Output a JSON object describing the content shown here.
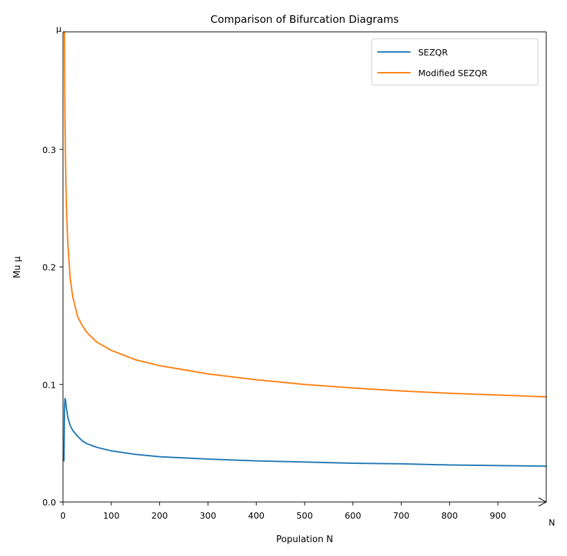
{
  "chart_data": {
    "type": "line",
    "title": "Comparison of Bifurcation Diagrams",
    "xlabel": "Population N",
    "ylabel": "Mu μ",
    "x_arrow_label": "N",
    "y_arrow_label": "μ",
    "xlim": [
      0,
      1000
    ],
    "ylim": [
      0,
      0.4
    ],
    "xticks": [
      0,
      100,
      200,
      300,
      400,
      500,
      600,
      700,
      800,
      900
    ],
    "xtick_labels": [
      "0",
      "100",
      "200",
      "300",
      "400",
      "500",
      "600",
      "700",
      "800",
      "900"
    ],
    "yticks": [
      0,
      0.1,
      0.2,
      0.3
    ],
    "ytick_labels": [
      "0.0",
      "0.1",
      "0.2",
      "0.3"
    ],
    "grid": false,
    "legend_position": "top-right",
    "series": [
      {
        "name": "SEZQR",
        "color": "#1f77b4",
        "x": [
          2,
          3,
          4,
          5,
          7,
          10,
          15,
          20,
          30,
          40,
          50,
          70,
          100,
          150,
          200,
          300,
          400,
          500,
          600,
          700,
          800,
          900,
          1000
        ],
        "y": [
          0.035,
          0.078,
          0.088,
          0.087,
          0.08,
          0.072,
          0.065,
          0.061,
          0.056,
          0.052,
          0.0495,
          0.0465,
          0.0435,
          0.0405,
          0.0385,
          0.0365,
          0.035,
          0.034,
          0.033,
          0.0325,
          0.0315,
          0.031,
          0.0305
        ]
      },
      {
        "name": "Modified SEZQR",
        "color": "#ff7f0e",
        "x": [
          3,
          4,
          5,
          6,
          8,
          10,
          15,
          20,
          30,
          40,
          50,
          70,
          100,
          150,
          200,
          300,
          400,
          500,
          600,
          700,
          800,
          900,
          1000
        ],
        "y": [
          0.4,
          0.33,
          0.295,
          0.27,
          0.24,
          0.22,
          0.19,
          0.175,
          0.158,
          0.15,
          0.144,
          0.136,
          0.129,
          0.121,
          0.116,
          0.109,
          0.104,
          0.1,
          0.097,
          0.0945,
          0.0925,
          0.091,
          0.0895
        ]
      }
    ]
  }
}
